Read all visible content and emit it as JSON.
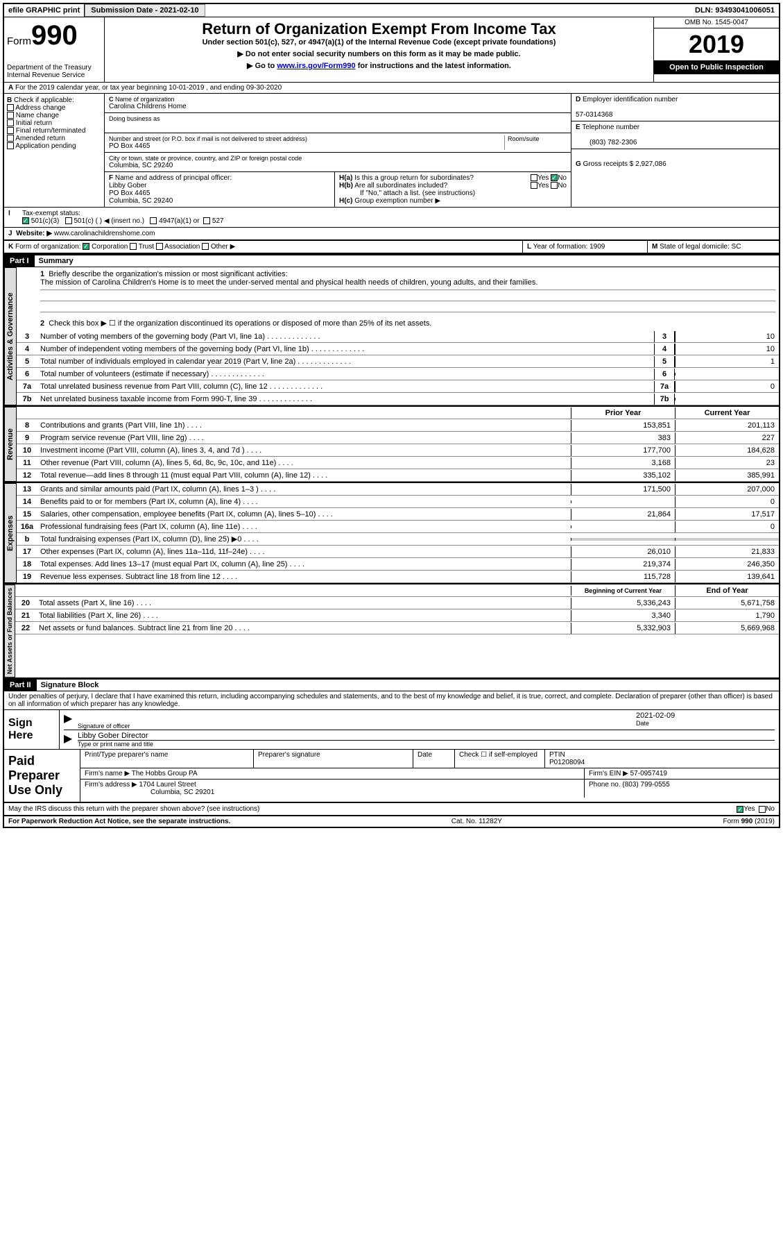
{
  "topbar": {
    "efile": "efile GRAPHIC print",
    "submission_label": "Submission Date - 2021-02-10",
    "dln": "DLN: 93493041006051"
  },
  "header": {
    "form_label": "Form",
    "form_num": "990",
    "dept": "Department of the Treasury\nInternal Revenue Service",
    "title": "Return of Organization Exempt From Income Tax",
    "sub1": "Under section 501(c), 527, or 4947(a)(1) of the Internal Revenue Code (except private foundations)",
    "sub2": "Do not enter social security numbers on this form as it may be made public.",
    "sub3_pre": "Go to ",
    "sub3_link": "www.irs.gov/Form990",
    "sub3_post": " for instructions and the latest information.",
    "omb": "OMB No. 1545-0047",
    "year": "2019",
    "inspection": "Open to Public Inspection"
  },
  "secA": {
    "text": "For the 2019 calendar year, or tax year beginning 10-01-2019    , and ending 09-30-2020"
  },
  "secB": {
    "label": "Check if applicable:",
    "items": [
      "Address change",
      "Name change",
      "Initial return",
      "Final return/terminated",
      "Amended return",
      "Application pending"
    ]
  },
  "secC": {
    "name_label": "Name of organization",
    "name": "Carolina Childrens Home",
    "dba_label": "Doing business as",
    "addr_label": "Number and street (or P.O. box if mail is not delivered to street address)",
    "room_label": "Room/suite",
    "addr": "PO Box 4465",
    "city_label": "City or town, state or province, country, and ZIP or foreign postal code",
    "city": "Columbia, SC  29240"
  },
  "secD": {
    "label": "Employer identification number",
    "value": "57-0314368"
  },
  "secE": {
    "label": "Telephone number",
    "value": "(803) 782-2306"
  },
  "secG": {
    "label": "Gross receipts $",
    "value": "2,927,086"
  },
  "secF": {
    "label": "Name and address of principal officer:",
    "name": "Libby Gober",
    "addr": "PO Box 4465",
    "city": "Columbia, SC  29240"
  },
  "secH": {
    "a": "Is this a group return for subordinates?",
    "b": "Are all subordinates included?",
    "b_note": "If \"No,\" attach a list. (see instructions)",
    "c": "Group exemption number ▶"
  },
  "secI": {
    "label": "Tax-exempt status:",
    "opts": [
      "501(c)(3)",
      "501(c) (  ) ◀ (insert no.)",
      "4947(a)(1) or",
      "527"
    ]
  },
  "secJ": {
    "label": "Website: ▶",
    "value": "www.carolinachildrenshome.com"
  },
  "secK": {
    "label": "Form of organization:",
    "opts": [
      "Corporation",
      "Trust",
      "Association",
      "Other ▶"
    ]
  },
  "secL": {
    "label": "Year of formation:",
    "value": "1909"
  },
  "secM": {
    "label": "State of legal domicile:",
    "value": "SC"
  },
  "part1": {
    "title": "Summary",
    "l1": "Briefly describe the organization's mission or most significant activities:",
    "l1_text": "The mission of Carolina Children's Home is to meet the under-served mental and physical health needs of children, young adults, and their families.",
    "l2": "Check this box ▶ ☐  if the organization discontinued its operations or disposed of more than 25% of its net assets.",
    "lines_gov": [
      {
        "n": "3",
        "t": "Number of voting members of the governing body (Part VI, line 1a)",
        "v": "10"
      },
      {
        "n": "4",
        "t": "Number of independent voting members of the governing body (Part VI, line 1b)",
        "v": "10"
      },
      {
        "n": "5",
        "t": "Total number of individuals employed in calendar year 2019 (Part V, line 2a)",
        "v": "1"
      },
      {
        "n": "6",
        "t": "Total number of volunteers (estimate if necessary)",
        "v": ""
      },
      {
        "n": "7a",
        "t": "Total unrelated business revenue from Part VIII, column (C), line 12",
        "v": "0"
      },
      {
        "n": "7b",
        "t": "Net unrelated business taxable income from Form 990-T, line 39",
        "v": ""
      }
    ],
    "col_prior": "Prior Year",
    "col_current": "Current Year",
    "lines_rev": [
      {
        "n": "8",
        "t": "Contributions and grants (Part VIII, line 1h)",
        "p": "153,851",
        "c": "201,113"
      },
      {
        "n": "9",
        "t": "Program service revenue (Part VIII, line 2g)",
        "p": "383",
        "c": "227"
      },
      {
        "n": "10",
        "t": "Investment income (Part VIII, column (A), lines 3, 4, and 7d )",
        "p": "177,700",
        "c": "184,628"
      },
      {
        "n": "11",
        "t": "Other revenue (Part VIII, column (A), lines 5, 6d, 8c, 9c, 10c, and 11e)",
        "p": "3,168",
        "c": "23"
      },
      {
        "n": "12",
        "t": "Total revenue—add lines 8 through 11 (must equal Part VIII, column (A), line 12)",
        "p": "335,102",
        "c": "385,991"
      }
    ],
    "lines_exp": [
      {
        "n": "13",
        "t": "Grants and similar amounts paid (Part IX, column (A), lines 1–3 )",
        "p": "171,500",
        "c": "207,000"
      },
      {
        "n": "14",
        "t": "Benefits paid to or for members (Part IX, column (A), line 4)",
        "p": "",
        "c": "0"
      },
      {
        "n": "15",
        "t": "Salaries, other compensation, employee benefits (Part IX, column (A), lines 5–10)",
        "p": "21,864",
        "c": "17,517"
      },
      {
        "n": "16a",
        "t": "Professional fundraising fees (Part IX, column (A), line 11e)",
        "p": "",
        "c": "0"
      },
      {
        "n": "b",
        "t": "Total fundraising expenses (Part IX, column (D), line 25) ▶0",
        "p": "shaded",
        "c": "shaded"
      },
      {
        "n": "17",
        "t": "Other expenses (Part IX, column (A), lines 11a–11d, 11f–24e)",
        "p": "26,010",
        "c": "21,833"
      },
      {
        "n": "18",
        "t": "Total expenses. Add lines 13–17 (must equal Part IX, column (A), line 25)",
        "p": "219,374",
        "c": "246,350"
      },
      {
        "n": "19",
        "t": "Revenue less expenses. Subtract line 18 from line 12",
        "p": "115,728",
        "c": "139,641"
      }
    ],
    "col_begin": "Beginning of Current Year",
    "col_end": "End of Year",
    "lines_net": [
      {
        "n": "20",
        "t": "Total assets (Part X, line 16)",
        "p": "5,336,243",
        "c": "5,671,758"
      },
      {
        "n": "21",
        "t": "Total liabilities (Part X, line 26)",
        "p": "3,340",
        "c": "1,790"
      },
      {
        "n": "22",
        "t": "Net assets or fund balances. Subtract line 21 from line 20",
        "p": "5,332,903",
        "c": "5,669,968"
      }
    ]
  },
  "vtabs": {
    "gov": "Activities & Governance",
    "rev": "Revenue",
    "exp": "Expenses",
    "net": "Net Assets or Fund Balances"
  },
  "part2": {
    "title": "Signature Block",
    "penalty": "Under penalties of perjury, I declare that I have examined this return, including accompanying schedules and statements, and to the best of my knowledge and belief, it is true, correct, and complete. Declaration of preparer (other than officer) is based on all information of which preparer has any knowledge."
  },
  "sign": {
    "label": "Sign Here",
    "sig_officer": "Signature of officer",
    "date_label": "Date",
    "date": "2021-02-09",
    "name": "Libby Gober  Director",
    "name_label": "Type or print name and title"
  },
  "paid": {
    "label": "Paid Preparer Use Only",
    "h1": "Print/Type preparer's name",
    "h2": "Preparer's signature",
    "h3": "Date",
    "h4": "Check ☐ if self-employed",
    "h5_label": "PTIN",
    "h5": "P01208094",
    "firm_name_label": "Firm's name    ▶",
    "firm_name": "The Hobbs Group PA",
    "firm_ein_label": "Firm's EIN ▶",
    "firm_ein": "57-0957419",
    "firm_addr_label": "Firm's address ▶",
    "firm_addr": "1704 Laurel Street",
    "firm_city": "Columbia, SC  29201",
    "phone_label": "Phone no.",
    "phone": "(803) 799-0555"
  },
  "discuss": "May the IRS discuss this return with the preparer shown above? (see instructions)",
  "footer": {
    "l": "For Paperwork Reduction Act Notice, see the separate instructions.",
    "m": "Cat. No. 11282Y",
    "r": "Form 990 (2019)"
  }
}
